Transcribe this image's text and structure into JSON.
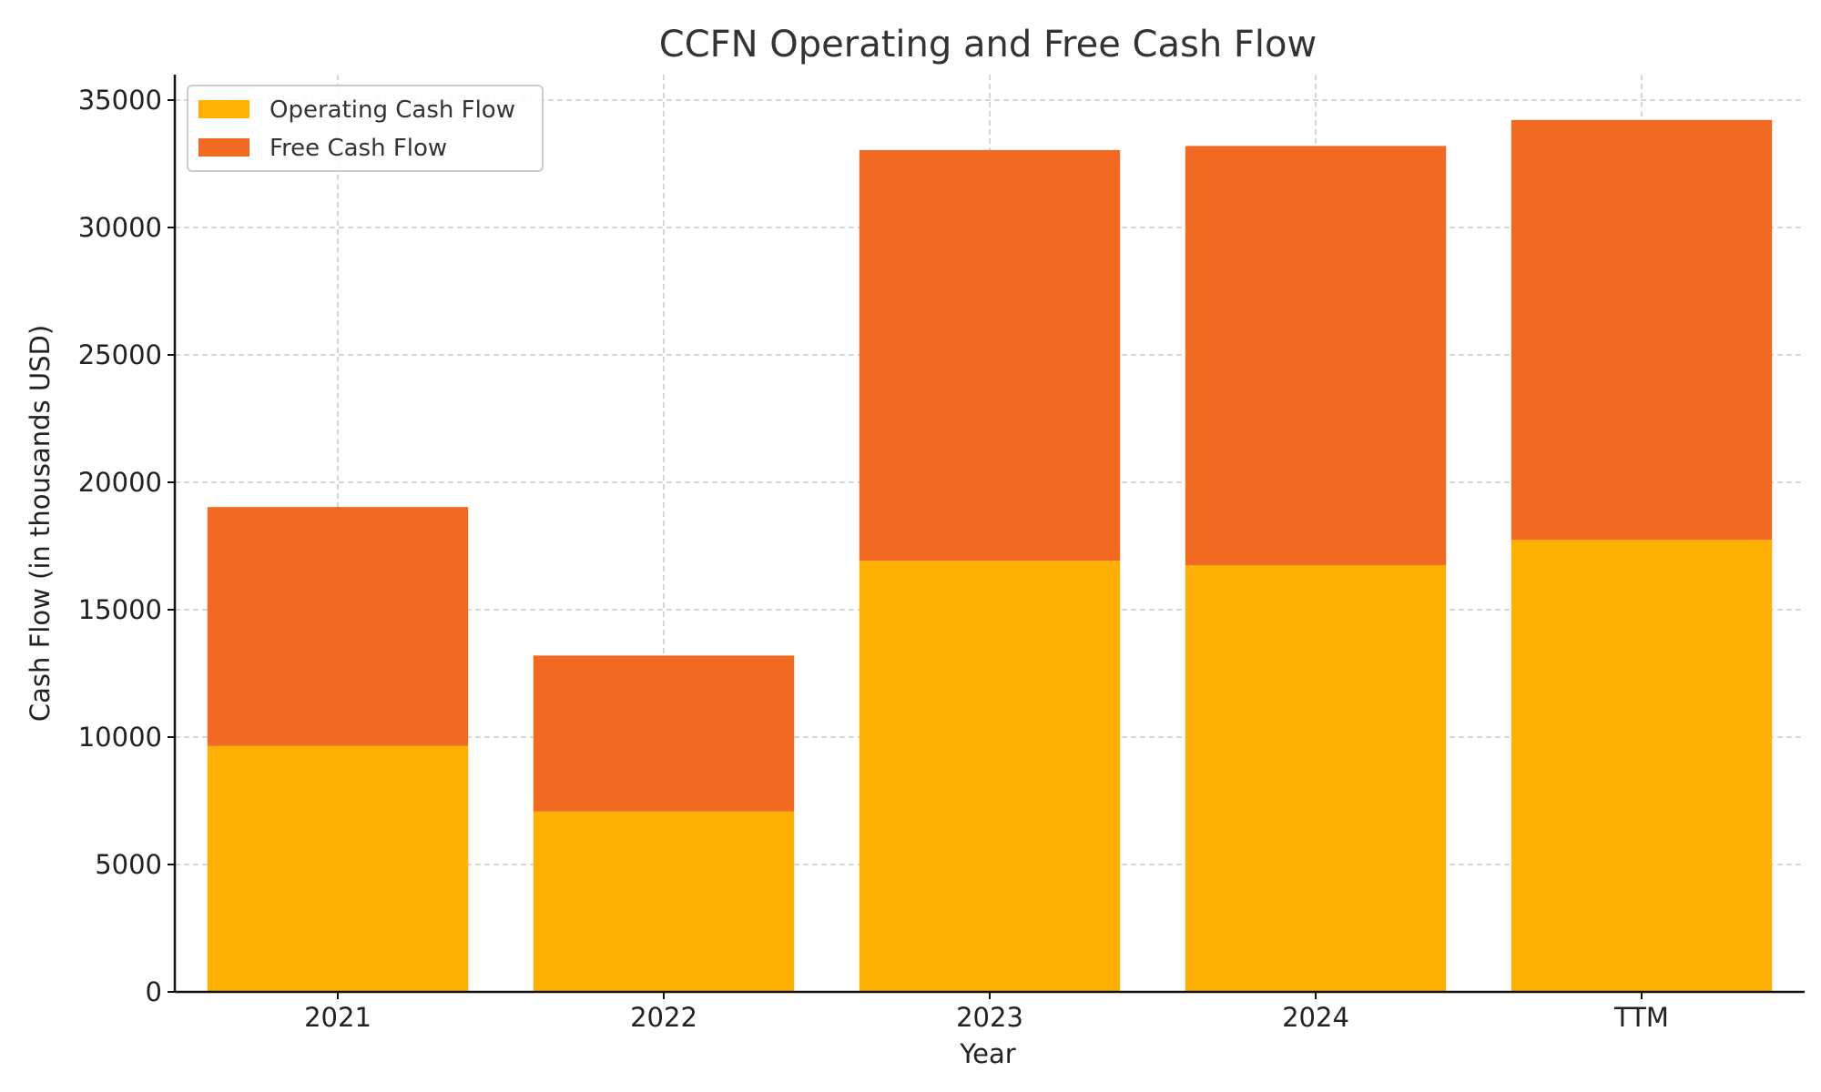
{
  "chart_data": {
    "type": "bar",
    "stacked": true,
    "title": "CCFN Operating and Free Cash Flow",
    "xlabel": "Year",
    "ylabel": "Cash Flow (in thousands USD)",
    "categories": [
      "2021",
      "2022",
      "2023",
      "2024",
      "TTM"
    ],
    "series": [
      {
        "name": "Operating Cash Flow",
        "color": "#FFB000",
        "values": [
          9650,
          7080,
          16920,
          16740,
          17740
        ]
      },
      {
        "name": "Free Cash Flow",
        "color": "#F26A21",
        "values": [
          9380,
          6120,
          16120,
          16460,
          16480
        ]
      }
    ],
    "ylim": [
      0,
      36000
    ],
    "yticks": [
      0,
      5000,
      10000,
      15000,
      20000,
      25000,
      30000,
      35000
    ],
    "grid": true,
    "legend_position": "top-left"
  }
}
